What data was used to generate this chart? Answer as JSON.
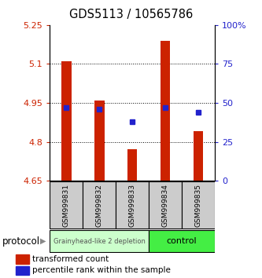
{
  "title": "GDS5113 / 10565786",
  "samples": [
    "GSM999831",
    "GSM999832",
    "GSM999833",
    "GSM999834",
    "GSM999835"
  ],
  "transformed_counts": [
    5.11,
    4.96,
    4.77,
    5.19,
    4.84
  ],
  "percentile_ranks": [
    47,
    46,
    38,
    47,
    44
  ],
  "ylim_left": [
    4.65,
    5.25
  ],
  "ylim_right": [
    0,
    100
  ],
  "yticks_left": [
    4.65,
    4.8,
    4.95,
    5.1,
    5.25
  ],
  "yticks_right": [
    0,
    25,
    50,
    75,
    100
  ],
  "bar_color": "#cc2200",
  "marker_color": "#2222cc",
  "base_value": 4.65,
  "groups": [
    {
      "label": "Grainyhead-like 2 depletion",
      "samples": [
        0,
        1,
        2
      ],
      "color": "#ccffcc"
    },
    {
      "label": "control",
      "samples": [
        3,
        4
      ],
      "color": "#44ee44"
    }
  ],
  "legend_bar_label": "transformed count",
  "legend_marker_label": "percentile rank within the sample",
  "protocol_label": "protocol",
  "tick_label_color_left": "#cc2200",
  "tick_label_color_right": "#2222cc",
  "sample_box_color": "#cccccc",
  "grid_yticks": [
    4.8,
    4.95,
    5.1
  ]
}
